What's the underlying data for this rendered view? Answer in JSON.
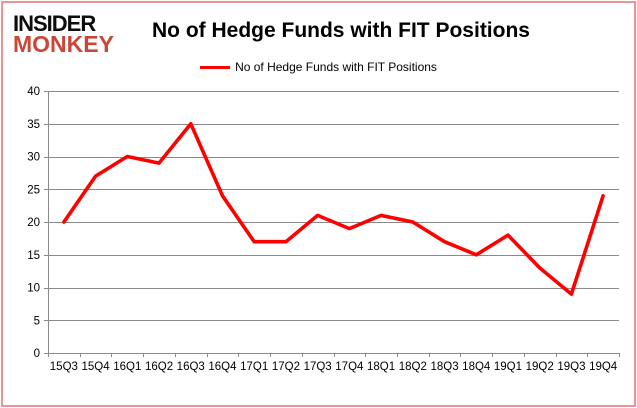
{
  "logo": {
    "line1": "INSIDER",
    "line2": "MONKEY"
  },
  "header": {
    "title": "No of Hedge Funds with FIT Positions"
  },
  "legend": {
    "label": "No of Hedge Funds with FIT Positions"
  },
  "colors": {
    "line": "#fe0000",
    "grid": "#8a8a8a",
    "text": "#000000",
    "logo_red": "#c9473a",
    "frame_border": "#e89494"
  },
  "chart_data": {
    "type": "line",
    "title": "No of Hedge Funds with FIT Positions",
    "categories": [
      "15Q3",
      "15Q4",
      "16Q1",
      "16Q2",
      "16Q3",
      "16Q4",
      "17Q1",
      "17Q2",
      "17Q3",
      "17Q4",
      "18Q1",
      "18Q2",
      "18Q3",
      "18Q4",
      "19Q1",
      "19Q2",
      "19Q3",
      "19Q4"
    ],
    "series": [
      {
        "name": "No of Hedge Funds with FIT Positions",
        "color": "#fe0000",
        "values": [
          20,
          27,
          30,
          29,
          35,
          24,
          17,
          17,
          21,
          19,
          21,
          20,
          17,
          15,
          18,
          13,
          9,
          24
        ]
      }
    ],
    "xlabel": "",
    "ylabel": "",
    "ylim": [
      0,
      40
    ],
    "ytick_interval": 5,
    "yticks": [
      0,
      5,
      10,
      15,
      20,
      25,
      30,
      35,
      40
    ],
    "grid": "horizontal",
    "legend_position": "top"
  }
}
